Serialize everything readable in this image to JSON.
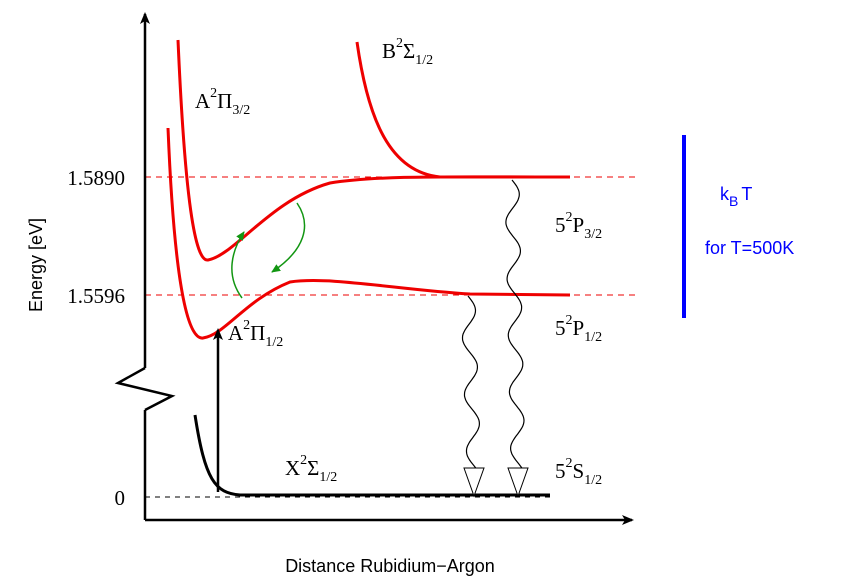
{
  "axes": {
    "y_label": "Energy [eV]",
    "x_label": "Distance Rubidium−Argon",
    "ticks": [
      "1.5890",
      "1.5596",
      "0"
    ]
  },
  "curves": [
    {
      "main": "A",
      "sup": "2",
      "sym": "Π",
      "sub": "3/2"
    },
    {
      "main": "B",
      "sup": "2",
      "sym": "Σ",
      "sub": "1/2"
    },
    {
      "main": "A",
      "sup": "2",
      "sym": "Π",
      "sub": "1/2"
    },
    {
      "main": "X",
      "sup": "2",
      "sym": "Σ",
      "sub": "1/2"
    }
  ],
  "levels": [
    {
      "main": "5",
      "sup": "2",
      "sym": "P",
      "sub": "3/2"
    },
    {
      "main": "5",
      "sup": "2",
      "sym": "P",
      "sub": "1/2"
    },
    {
      "main": "5",
      "sup": "2",
      "sym": "S",
      "sub": "1/2"
    }
  ],
  "thermal": {
    "k": "k",
    "sub": "B",
    "t": "T",
    "note": "for T=500K"
  }
}
